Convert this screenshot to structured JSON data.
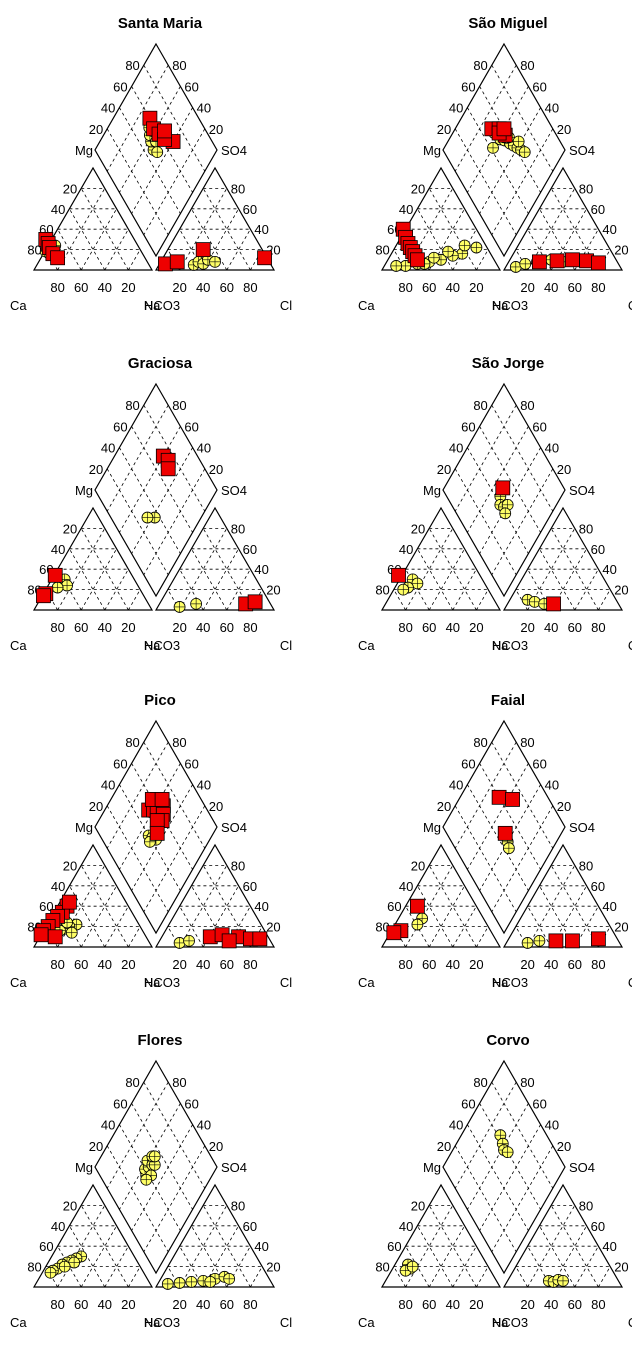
{
  "figure": {
    "axis_labels": {
      "Ca": "Ca",
      "Na": "Na",
      "HCO3": "HCO3",
      "Cl": "Cl",
      "Mg": "Mg",
      "SO4": "SO4"
    },
    "tick_values": [
      20,
      40,
      60,
      80
    ],
    "legend_colors": {
      "red_square": "#ee0000",
      "yellow_circle": "#ffff66",
      "stroke": "#000000"
    }
  },
  "chart_data": [
    {
      "type": "piper",
      "title": "Santa Maria",
      "series": [
        {
          "marker": "yellow-circle",
          "cation_tri": [
            [
              10,
              18
            ],
            [
              12,
              22
            ],
            [
              14,
              26
            ],
            [
              15,
              20
            ],
            [
              18,
              24
            ],
            [
              13,
              16
            ]
          ],
          "anion_tri": [
            [
              32,
              5
            ],
            [
              36,
              8
            ],
            [
              40,
              6
            ],
            [
              44,
              10
            ],
            [
              50,
              8
            ]
          ],
          "diamond": [
            [
              48,
              52
            ],
            [
              50,
              58
            ],
            [
              52,
              62
            ],
            [
              55,
              66
            ],
            [
              54,
              54
            ],
            [
              57,
              60
            ],
            [
              50,
              48
            ]
          ]
        },
        {
          "marker": "red-square",
          "cation_tri": [
            [
              10,
              30
            ],
            [
              12,
              26
            ],
            [
              13,
              22
            ],
            [
              16,
              16
            ],
            [
              20,
              12
            ]
          ],
          "anion_tri": [
            [
              8,
              6
            ],
            [
              18,
              8
            ],
            [
              40,
              20
            ],
            [
              92,
              12
            ]
          ],
          "diamond": [
            [
              68,
              40
            ],
            [
              60,
              70
            ],
            [
              58,
              62
            ],
            [
              60,
              55
            ],
            [
              62,
              48
            ],
            [
              66,
              52
            ]
          ]
        }
      ]
    },
    {
      "type": "piper",
      "title": "São Miguel",
      "series": [
        {
          "marker": "yellow-circle",
          "cation_tri": [
            [
              80,
              22
            ],
            [
              68,
              16
            ],
            [
              60,
              14
            ],
            [
              50,
              10
            ],
            [
              40,
              8
            ],
            [
              30,
              6
            ],
            [
              20,
              4
            ],
            [
              12,
              4
            ],
            [
              70,
              24
            ],
            [
              56,
              18
            ],
            [
              44,
              12
            ],
            [
              36,
              6
            ]
          ],
          "anion_tri": [
            [
              10,
              3
            ],
            [
              18,
              6
            ],
            [
              28,
              8
            ],
            [
              40,
              10
            ],
            [
              50,
              8
            ],
            [
              60,
              10
            ],
            [
              70,
              8
            ]
          ],
          "diamond": [
            [
              42,
              60
            ],
            [
              50,
              66
            ],
            [
              52,
              58
            ],
            [
              55,
              54
            ],
            [
              58,
              48
            ],
            [
              60,
              44
            ],
            [
              62,
              40
            ],
            [
              64,
              36
            ],
            [
              66,
              32
            ],
            [
              56,
              56
            ],
            [
              60,
              52
            ],
            [
              66,
              42
            ]
          ]
        },
        {
          "marker": "red-square",
          "cation_tri": [
            [
              18,
              40
            ],
            [
              20,
              32
            ],
            [
              22,
              26
            ],
            [
              24,
              22
            ],
            [
              26,
              18
            ],
            [
              28,
              14
            ],
            [
              30,
              10
            ]
          ],
          "anion_tri": [
            [
              30,
              8
            ],
            [
              45,
              9
            ],
            [
              58,
              10
            ],
            [
              70,
              9
            ],
            [
              80,
              7
            ]
          ],
          "diamond": [
            [
              50,
              70
            ],
            [
              56,
              64
            ],
            [
              58,
              56
            ],
            [
              54,
              62
            ],
            [
              60,
              60
            ]
          ]
        }
      ]
    },
    {
      "type": "piper",
      "title": "Graciosa",
      "series": [
        {
          "marker": "yellow-circle",
          "cation_tri": [
            [
              26,
              30
            ],
            [
              28,
              24
            ],
            [
              20,
              22
            ]
          ],
          "anion_tri": [
            [
              20,
              3
            ],
            [
              34,
              6
            ]
          ],
          "diamond": [
            [
              36,
              38
            ],
            [
              30,
              44
            ]
          ]
        },
        {
          "marker": "red-square",
          "cation_tri": [
            [
              18,
              34
            ],
            [
              10,
              16
            ],
            [
              8,
              14
            ]
          ],
          "anion_tri": [
            [
              76,
              6
            ],
            [
              84,
              8
            ]
          ],
          "diamond": [
            [
              72,
              60
            ],
            [
              74,
              54
            ],
            [
              70,
              50
            ]
          ]
        }
      ]
    },
    {
      "type": "piper",
      "title": "São Jorge",
      "series": [
        {
          "marker": "yellow-circle",
          "cation_tri": [
            [
              26,
              30
            ],
            [
              30,
              26
            ],
            [
              22,
              22
            ],
            [
              18,
              20
            ]
          ],
          "anion_tri": [
            [
              20,
              10
            ],
            [
              26,
              8
            ],
            [
              34,
              6
            ]
          ],
          "diamond": [
            [
              44,
              50
            ],
            [
              40,
              46
            ],
            [
              42,
              42
            ],
            [
              46,
              40
            ],
            [
              40,
              38
            ]
          ]
        },
        {
          "marker": "red-square",
          "cation_tri": [
            [
              14,
              34
            ]
          ],
          "anion_tri": [
            [
              42,
              6
            ]
          ],
          "diamond": [
            [
              50,
              52
            ]
          ]
        }
      ]
    },
    {
      "type": "piper",
      "title": "Pico",
      "series": [
        {
          "marker": "yellow-circle",
          "cation_tri": [
            [
              36,
              22
            ],
            [
              30,
              20
            ],
            [
              26,
              18
            ],
            [
              22,
              16
            ],
            [
              28,
              24
            ],
            [
              32,
              14
            ]
          ],
          "anion_tri": [
            [
              20,
              4
            ],
            [
              28,
              6
            ]
          ],
          "diamond": [
            [
              40,
              52
            ],
            [
              42,
              48
            ],
            [
              44,
              44
            ],
            [
              38,
              48
            ]
          ]
        },
        {
          "marker": "red-square",
          "cation_tri": [
            [
              28,
              40
            ],
            [
              24,
              34
            ],
            [
              20,
              30
            ],
            [
              16,
              26
            ],
            [
              12,
              20
            ],
            [
              8,
              16
            ],
            [
              30,
              44
            ],
            [
              6,
              12
            ],
            [
              18,
              10
            ]
          ],
          "anion_tri": [
            [
              46,
              10
            ],
            [
              56,
              12
            ],
            [
              70,
              10
            ],
            [
              80,
              8
            ],
            [
              88,
              8
            ],
            [
              62,
              6
            ]
          ],
          "diamond": [
            [
              52,
              64
            ],
            [
              56,
              60
            ],
            [
              60,
              58
            ],
            [
              64,
              62
            ],
            [
              66,
              54
            ],
            [
              62,
              50
            ],
            [
              58,
              48
            ],
            [
              54,
              52
            ],
            [
              60,
              66
            ],
            [
              68,
              58
            ],
            [
              48,
              46
            ]
          ]
        }
      ]
    },
    {
      "type": "piper",
      "title": "Faial",
      "series": [
        {
          "marker": "yellow-circle",
          "cation_tri": [
            [
              34,
              28
            ],
            [
              30,
              22
            ]
          ],
          "anion_tri": [
            [
              20,
              4
            ],
            [
              30,
              6
            ]
          ],
          "diamond": [
            [
              46,
              40
            ],
            [
              44,
              36
            ]
          ]
        },
        {
          "marker": "red-square",
          "cation_tri": [
            [
              30,
              40
            ],
            [
              16,
              16
            ],
            [
              10,
              14
            ]
          ],
          "anion_tri": [
            [
              44,
              6
            ],
            [
              58,
              6
            ],
            [
              80,
              8
            ]
          ],
          "diamond": [
            [
              60,
              68
            ],
            [
              70,
              56
            ],
            [
              48,
              46
            ]
          ]
        }
      ]
    },
    {
      "type": "piper",
      "title": "Flores",
      "series": [
        {
          "marker": "yellow-circle",
          "cation_tri": [
            [
              40,
              30
            ],
            [
              36,
              28
            ],
            [
              32,
              26
            ],
            [
              28,
              24
            ],
            [
              24,
              22
            ],
            [
              20,
              18
            ],
            [
              16,
              16
            ],
            [
              14,
              14
            ],
            [
              34,
              24
            ],
            [
              26,
              20
            ]
          ],
          "anion_tri": [
            [
              10,
              3
            ],
            [
              20,
              4
            ],
            [
              30,
              5
            ],
            [
              40,
              6
            ],
            [
              50,
              8
            ],
            [
              58,
              10
            ],
            [
              62,
              8
            ],
            [
              46,
              5
            ]
          ],
          "diamond": [
            [
              38,
              54
            ],
            [
              40,
              58
            ],
            [
              44,
              56
            ],
            [
              46,
              60
            ],
            [
              48,
              54
            ],
            [
              50,
              52
            ],
            [
              52,
              58
            ],
            [
              54,
              56
            ],
            [
              42,
              50
            ],
            [
              36,
              52
            ]
          ]
        }
      ]
    },
    {
      "type": "piper",
      "title": "Corvo",
      "series": [
        {
          "marker": "yellow-circle",
          "cation_tri": [
            [
              22,
              22
            ],
            [
              24,
              18
            ],
            [
              20,
              16
            ],
            [
              26,
              20
            ]
          ],
          "anion_tri": [
            [
              38,
              6
            ],
            [
              42,
              5
            ],
            [
              46,
              7
            ],
            [
              50,
              6
            ]
          ],
          "diamond": [
            [
              62,
              68
            ],
            [
              60,
              62
            ],
            [
              58,
              58
            ],
            [
              60,
              54
            ]
          ]
        }
      ]
    }
  ]
}
